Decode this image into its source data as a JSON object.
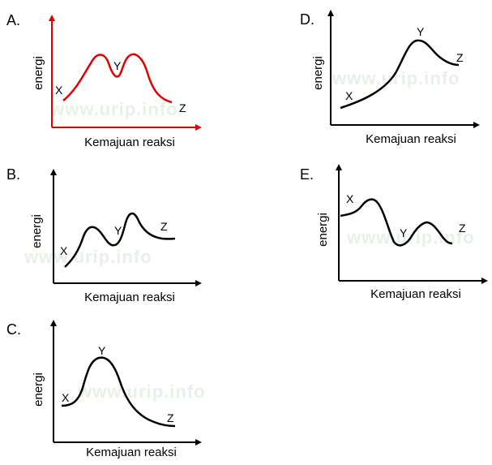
{
  "diagrams": [
    {
      "option": "A.",
      "ylabel": "energi",
      "xlabel": "Kemajuan reaksi",
      "points": [
        "X",
        "Y",
        "Z"
      ],
      "watermark": "www.urip.info",
      "axis_color": "#e00000"
    },
    {
      "option": "B.",
      "ylabel": "energi",
      "xlabel": "Kemajuan reaksi",
      "points": [
        "X",
        "Y",
        "Z"
      ],
      "watermark": "www.urip.info",
      "axis_color": "#000000"
    },
    {
      "option": "C.",
      "ylabel": "energi",
      "xlabel": "Kemajuan reaksi",
      "points": [
        "X",
        "Y",
        "Z"
      ],
      "watermark": "www.urip.info",
      "axis_color": "#000000"
    },
    {
      "option": "D.",
      "ylabel": "energi",
      "xlabel": "Kemajuan reaksi",
      "points": [
        "X",
        "Y",
        "Z"
      ],
      "watermark": "www.urip.info",
      "axis_color": "#000000"
    },
    {
      "option": "E.",
      "ylabel": "energi",
      "xlabel": "Kemajuan reaksi",
      "points": [
        "X",
        "Y",
        "Z"
      ],
      "watermark": "www.urip.info",
      "axis_color": "#000000"
    }
  ]
}
